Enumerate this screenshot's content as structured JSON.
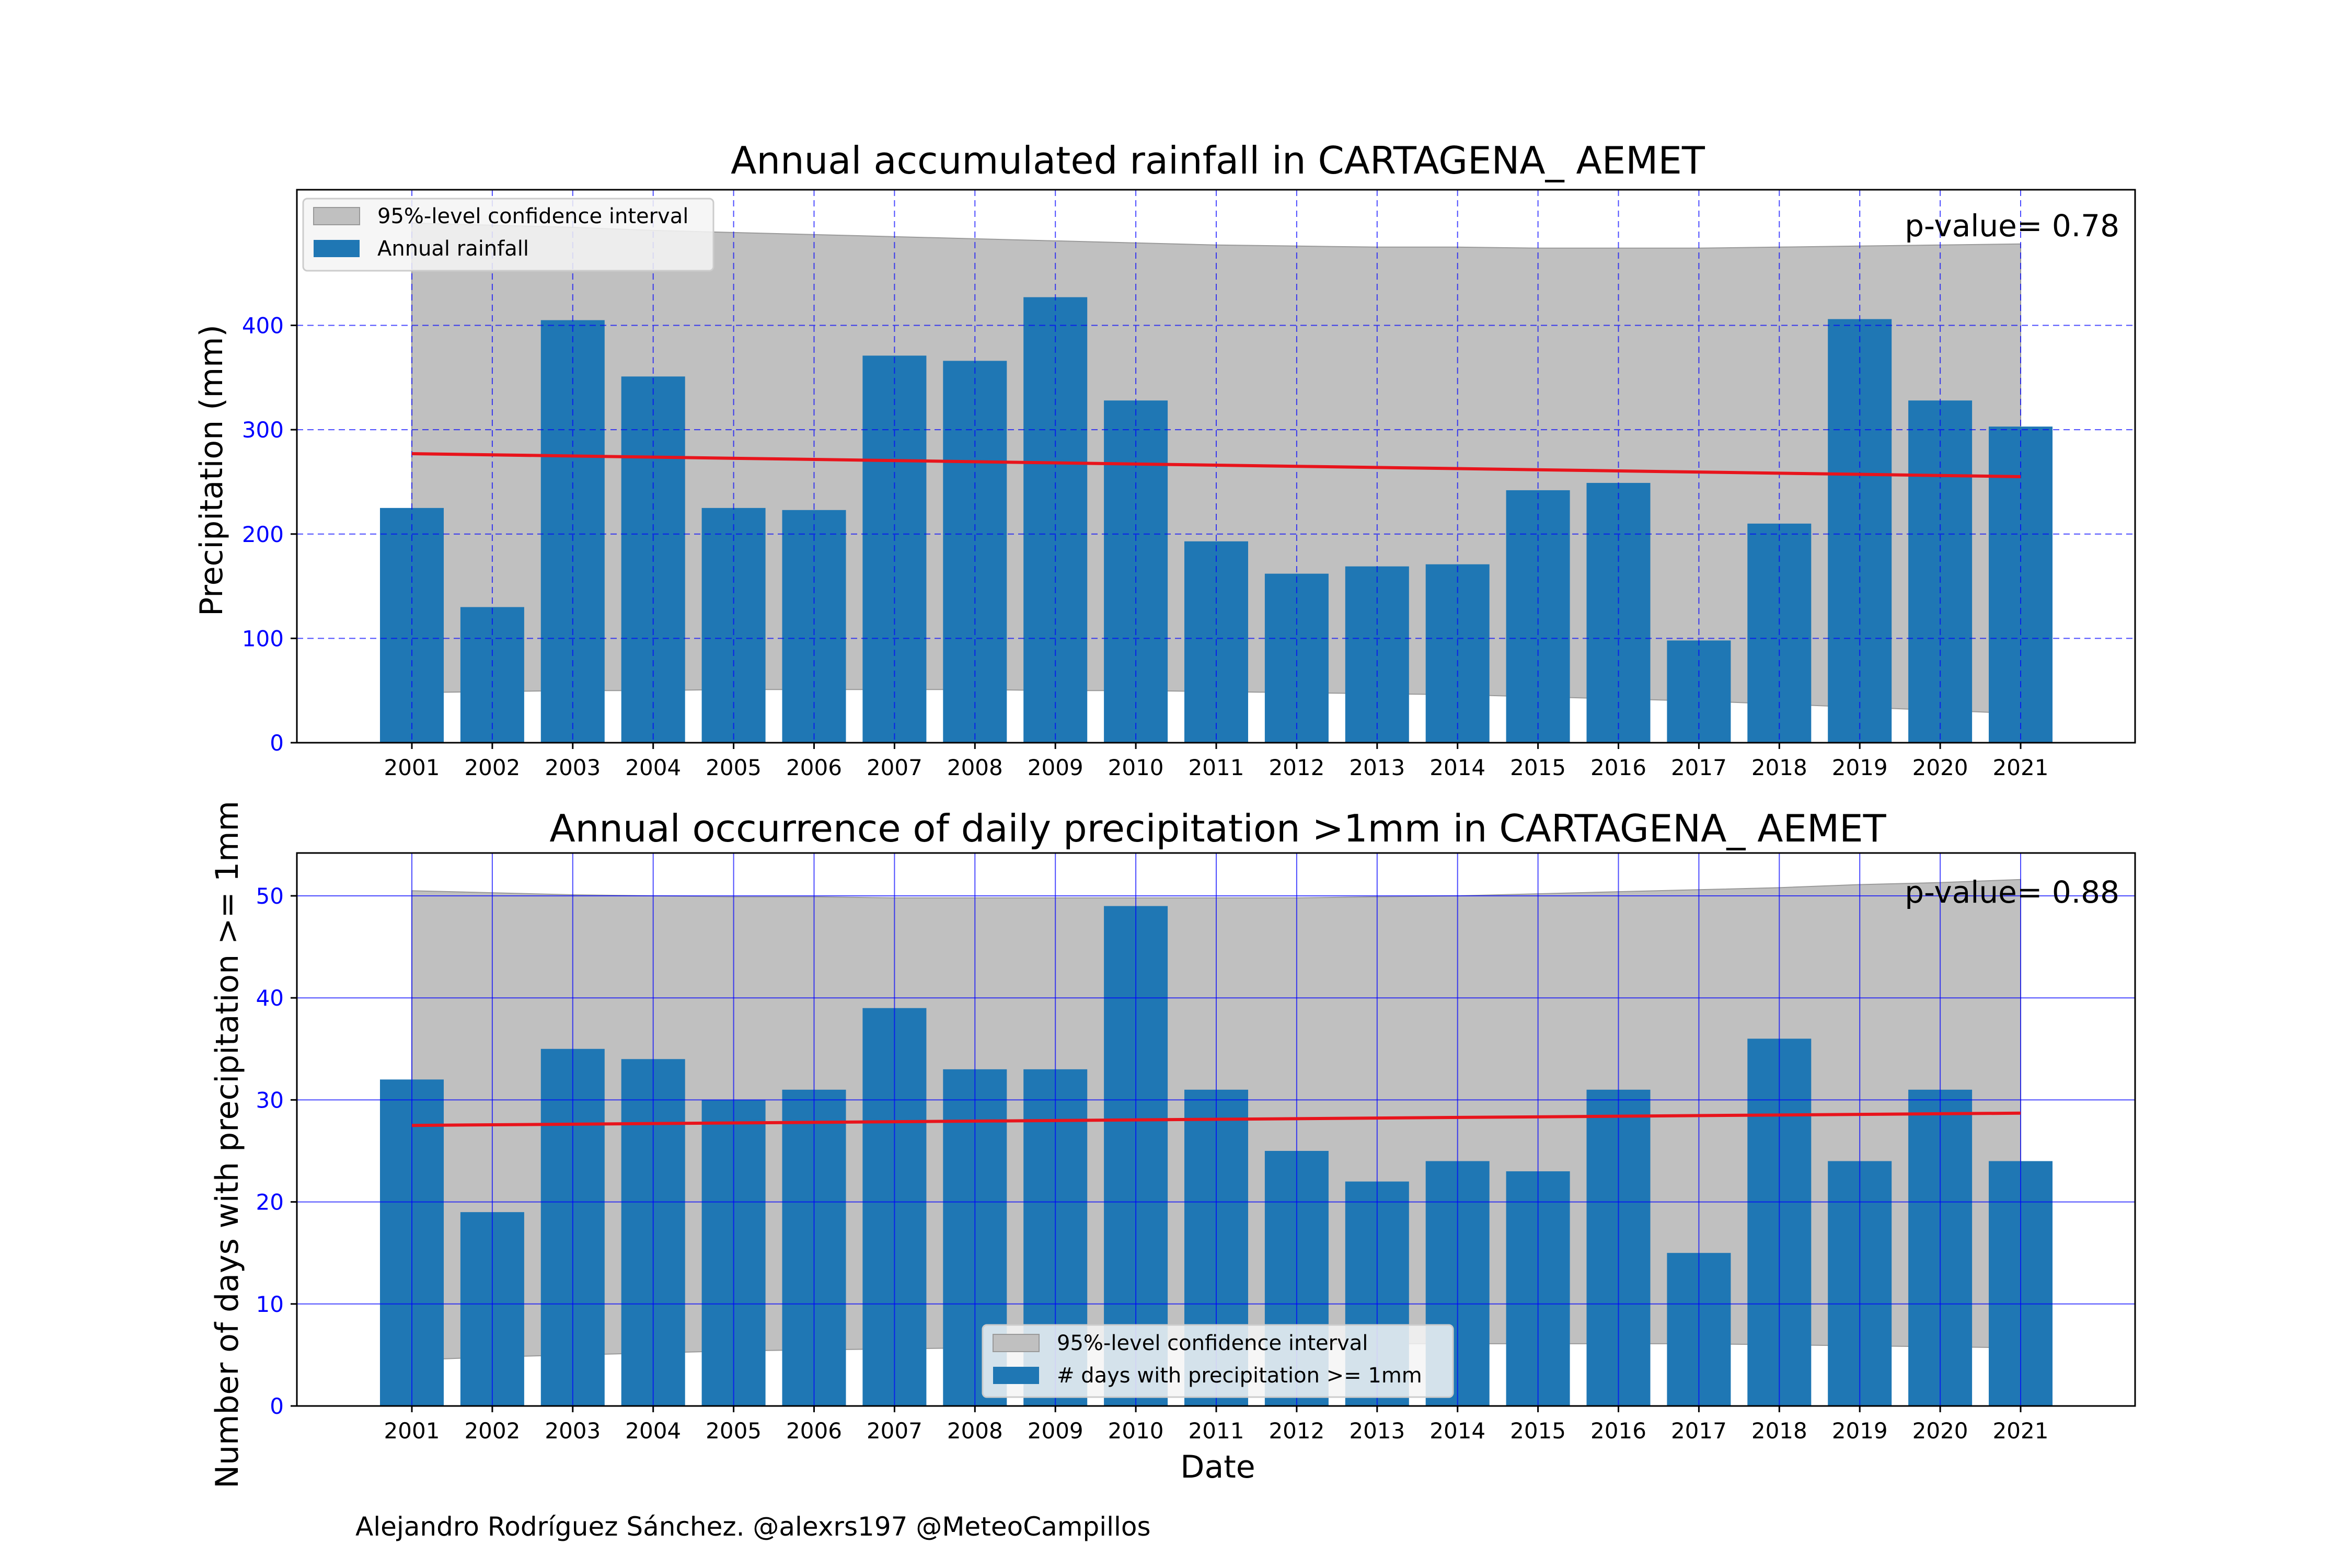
{
  "credit": "Alejandro Rodríguez Sánchez. @alexrs197 @MeteoCampillos",
  "colors": {
    "bar": "#1f77b4",
    "trend": "#e8141c",
    "band": "#c0c0c0",
    "grid": "#0000ff",
    "ytick": "#0000ff"
  },
  "chart_data": [
    {
      "type": "bar",
      "title": "Annual accumulated rainfall in CARTAGENA_ AEMET",
      "xlabel": "",
      "ylabel": "Precipitation (mm)",
      "categories": [
        "2001",
        "2002",
        "2003",
        "2004",
        "2005",
        "2006",
        "2007",
        "2008",
        "2009",
        "2010",
        "2011",
        "2012",
        "2013",
        "2014",
        "2015",
        "2016",
        "2017",
        "2018",
        "2019",
        "2020",
        "2021"
      ],
      "yticks": [
        0,
        100,
        200,
        300,
        400
      ],
      "ylim": [
        0,
        530
      ],
      "grid": "dashed",
      "legend_position": "top-left",
      "p_value": "p-value= 0.78",
      "series": [
        {
          "name": "Annual rainfall",
          "values": [
            225,
            130,
            405,
            351,
            225,
            223,
            371,
            366,
            427,
            328,
            193,
            162,
            169,
            171,
            242,
            249,
            98,
            210,
            406,
            328,
            303
          ]
        }
      ],
      "trend": {
        "start": 277,
        "end": 255
      },
      "confidence_interval": {
        "label": "95%-level confidence interval",
        "upper": [
          498,
          496,
          494,
          491,
          489,
          487,
          485,
          483,
          481,
          479,
          477,
          476,
          475,
          475,
          474,
          474,
          474,
          475,
          476,
          477,
          478
        ],
        "lower": [
          48,
          49,
          50,
          50,
          51,
          51,
          51,
          51,
          50,
          50,
          49,
          48,
          47,
          46,
          44,
          42,
          40,
          37,
          34,
          31,
          28
        ]
      }
    },
    {
      "type": "bar",
      "title": "Annual occurrence of daily precipitation >1mm in CARTAGENA_ AEMET",
      "xlabel": "Date",
      "ylabel": "Number of days with precipitation >= 1mm",
      "categories": [
        "2001",
        "2002",
        "2003",
        "2004",
        "2005",
        "2006",
        "2007",
        "2008",
        "2009",
        "2010",
        "2011",
        "2012",
        "2013",
        "2014",
        "2015",
        "2016",
        "2017",
        "2018",
        "2019",
        "2020",
        "2021"
      ],
      "yticks": [
        0,
        10,
        20,
        30,
        40,
        50
      ],
      "ylim": [
        0,
        54.2
      ],
      "grid": "solid",
      "legend_position": "bottom-center",
      "p_value": "p-value= 0.88",
      "series": [
        {
          "name": "# days with precipitation >= 1mm",
          "values": [
            32,
            19,
            35,
            34,
            30,
            31,
            39,
            33,
            33,
            49,
            31,
            25,
            22,
            24,
            23,
            31,
            15,
            36,
            24,
            31,
            24
          ]
        }
      ],
      "trend": {
        "start": 27.5,
        "end": 28.7
      },
      "confidence_interval": {
        "label": "95%-level confidence interval",
        "upper": [
          50.5,
          50.3,
          50.1,
          50.0,
          49.9,
          49.9,
          49.8,
          49.8,
          49.8,
          49.8,
          49.8,
          49.8,
          49.9,
          50.0,
          50.2,
          50.4,
          50.6,
          50.8,
          51.1,
          51.3,
          51.6
        ],
        "lower": [
          4.5,
          4.8,
          5.0,
          5.2,
          5.4,
          5.5,
          5.6,
          5.7,
          5.8,
          5.9,
          6.0,
          6.1,
          6.1,
          6.1,
          6.1,
          6.1,
          6.1,
          6.0,
          5.9,
          5.8,
          5.7
        ]
      }
    }
  ]
}
